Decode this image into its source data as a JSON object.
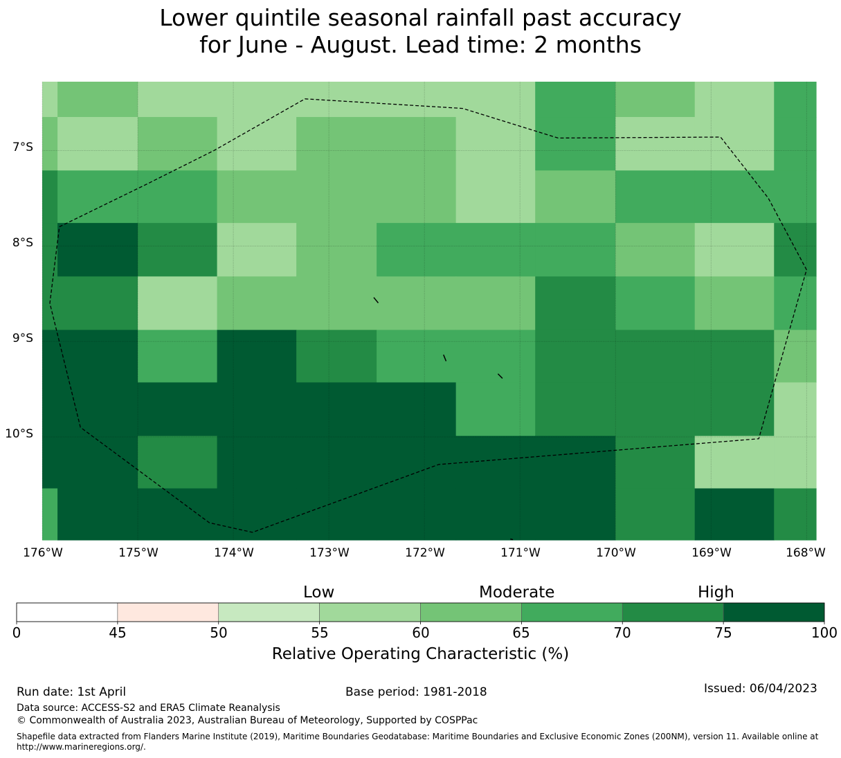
{
  "title": {
    "line1": "Lower quintile seasonal rainfall past accuracy",
    "line2": "for June - August. Lead time: 2 months"
  },
  "map": {
    "lat_labels": [
      "7°S",
      "8°S",
      "9°S",
      "10°S"
    ],
    "lat_values": [
      -7,
      -8,
      -9,
      -10
    ],
    "lon_labels": [
      "176°W",
      "175°W",
      "174°W",
      "173°W",
      "172°W",
      "171°W",
      "170°W",
      "169°W",
      "168°W"
    ],
    "lon_values": [
      -176,
      -175,
      -174,
      -173,
      -172,
      -171,
      -170,
      -169,
      -168
    ],
    "extent": {
      "lon_min": -176,
      "lon_max": -167.9,
      "lat_top": -6.28,
      "lat_bottom": -11.08
    },
    "grid_lon_edges": [
      -176,
      -175.84,
      -175,
      -174.17,
      -173.34,
      -172.5,
      -171.67,
      -170.84,
      -170,
      -169.17,
      -168.34,
      -167.9
    ],
    "grid_lat_edges": [
      -6.28,
      -6.65,
      -7.21,
      -7.76,
      -8.32,
      -8.88,
      -9.43,
      -9.99,
      -10.54,
      -11.08
    ],
    "roc_grid": [
      [
        57,
        62,
        57,
        57,
        57,
        57,
        57,
        67,
        62,
        57,
        67
      ],
      [
        62,
        57,
        62,
        57,
        62,
        62,
        57,
        67,
        57,
        57,
        67
      ],
      [
        72,
        67,
        67,
        62,
        62,
        62,
        57,
        62,
        67,
        67,
        67
      ],
      [
        72,
        80,
        72,
        57,
        62,
        67,
        67,
        67,
        62,
        57,
        72
      ],
      [
        72,
        72,
        57,
        62,
        62,
        62,
        62,
        72,
        67,
        62,
        67
      ],
      [
        80,
        80,
        67,
        80,
        72,
        67,
        67,
        72,
        72,
        72,
        62
      ],
      [
        80,
        80,
        80,
        80,
        80,
        80,
        67,
        72,
        72,
        72,
        57
      ],
      [
        80,
        80,
        72,
        80,
        80,
        80,
        80,
        80,
        72,
        57,
        57
      ],
      [
        67,
        80,
        80,
        80,
        80,
        80,
        80,
        80,
        72,
        80,
        72
      ]
    ],
    "eez_boundary": [
      [
        -175.82,
        -7.8
      ],
      [
        -174.9,
        -7.35
      ],
      [
        -174.2,
        -7.0
      ],
      [
        -173.25,
        -6.46
      ],
      [
        -171.6,
        -6.56
      ],
      [
        -170.6,
        -6.87
      ],
      [
        -168.9,
        -6.86
      ],
      [
        -168.4,
        -7.5
      ],
      [
        -168.0,
        -8.25
      ],
      [
        -168.5,
        -10.02
      ],
      [
        -171.85,
        -10.29
      ],
      [
        -173.8,
        -11.0
      ],
      [
        -174.25,
        -10.9
      ],
      [
        -175.6,
        -9.9
      ],
      [
        -175.92,
        -8.6
      ],
      [
        -175.82,
        -7.8
      ]
    ],
    "islands": [
      [
        [
          -172.53,
          -8.54
        ],
        [
          -172.49,
          -8.59
        ]
      ],
      [
        [
          -171.8,
          -9.14
        ],
        [
          -171.78,
          -9.2
        ]
      ],
      [
        [
          -171.23,
          -9.34
        ],
        [
          -171.19,
          -9.38
        ]
      ],
      [
        [
          -171.1,
          -11.07
        ],
        [
          -171.08,
          -11.07
        ]
      ]
    ]
  },
  "colorbar": {
    "ticks": [
      "0",
      "45",
      "50",
      "55",
      "60",
      "65",
      "70",
      "75",
      "100"
    ],
    "bounds": [
      0,
      45,
      50,
      55,
      60,
      65,
      70,
      75,
      100
    ],
    "colors": [
      "#ffffff",
      "#fee8df",
      "#c7e9c0",
      "#a1d99b",
      "#74c476",
      "#41ab5d",
      "#238b45",
      "#005a32"
    ],
    "category_labels": [
      "Low",
      "Moderate",
      "High"
    ],
    "title": "Relative Operating Characteristic (%)"
  },
  "footer": {
    "run_date": "Run date: 1st April",
    "base_period": "Base period: 1981-2018",
    "issued": "Issued: 06/04/2023",
    "data_source": "Data source: ACCESS-S2 and ERA5 Climate Reanalysis",
    "copyright": "© Commonwealth of Australia 2023, Australian Bureau of Meteorology, Supported by COSPPac",
    "shapefile_note": "Shapefile data extracted from Flanders Marine Institute (2019), Maritime Boundaries Geodatabase: Maritime Boundaries and Exclusive Economic Zones (200NM), version 11. Available online at http://www.marineregions.org/."
  }
}
